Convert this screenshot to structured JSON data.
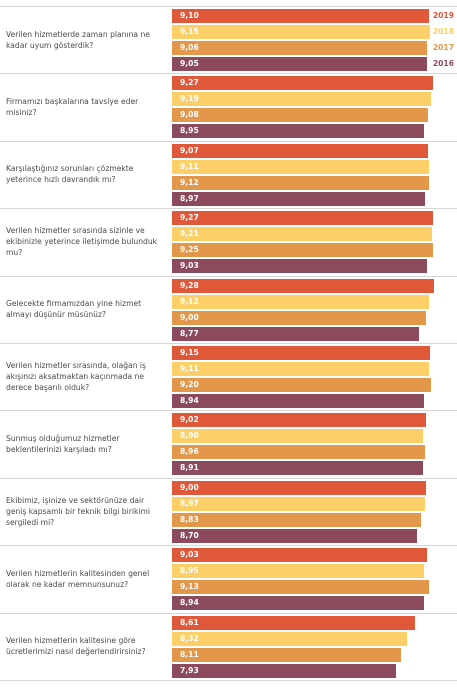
{
  "chart_data": {
    "type": "bar",
    "orientation": "horizontal",
    "categories": [
      "Verilen hizmetlerde zaman planına ne kadar uyum gösterdik?",
      "Firmamızı başkalarına tavsiye eder misiniz?",
      "Karşılaştığınız sorunları çözmekte yeterince hızlı davrandık mı?",
      "Verilen hizmetler sırasında sizinle ve ekibinizle yeterince iletişimde bulunduk mu?",
      "Gelecekte firmamızdan yine hizmet almayı düşünür müsünüz?",
      "Verilen hizmetler sırasında, olağan iş akışınızı aksatmaktan kaçınmada ne derece başarılı olduk?",
      "Sunmuş olduğumuz hizmetler beklentilerinizi karşıladı mı?",
      "Ekibimiz, işinize ve sektörünüze dair geniş kapsamlı bir teknik bilgi birikimi sergiledi mi?",
      "Verilen hizmetlerin kalitesinden genel olarak ne kadar memnunsunuz?",
      "Verilen hizmetlerin kalitesine göre ücretlerimizi nasıl değerlendirirsiniz?"
    ],
    "series": [
      {
        "name": "2019",
        "color": "#e0583a",
        "values": [
          9.1,
          9.27,
          9.07,
          9.27,
          9.28,
          9.15,
          9.02,
          9.0,
          9.03,
          8.61
        ],
        "value_labels": [
          "9,10",
          "9,27",
          "9,07",
          "9,27",
          "9,28",
          "9,15",
          "9,02",
          "9,00",
          "9,03",
          "8,61"
        ]
      },
      {
        "name": "2018",
        "color": "#fccf69",
        "values": [
          9.15,
          9.19,
          9.11,
          9.21,
          9.12,
          9.11,
          8.9,
          8.97,
          8.95,
          8.32
        ],
        "value_labels": [
          "9,15",
          "9,19",
          "9,11",
          "9,21",
          "9,12",
          "9,11",
          "8,90",
          "8,97",
          "8,95",
          "8,32"
        ]
      },
      {
        "name": "2017",
        "color": "#e2974a",
        "values": [
          9.06,
          9.08,
          9.12,
          9.25,
          9.0,
          9.2,
          8.96,
          8.83,
          9.13,
          8.11
        ],
        "value_labels": [
          "9,06",
          "9,08",
          "9,12",
          "9,25",
          "9,00",
          "9,20",
          "8,96",
          "8,83",
          "9,13",
          "8,11"
        ]
      },
      {
        "name": "2016",
        "color": "#8c4a5d",
        "values": [
          9.05,
          8.95,
          8.97,
          9.03,
          8.77,
          8.94,
          8.91,
          8.7,
          8.94,
          7.93
        ],
        "value_labels": [
          "9,05",
          "8,95",
          "8,97",
          "9,03",
          "8,77",
          "8,94",
          "8,91",
          "8,70",
          "8,94",
          "7,93"
        ]
      }
    ],
    "xlim": [
      0,
      10
    ]
  }
}
